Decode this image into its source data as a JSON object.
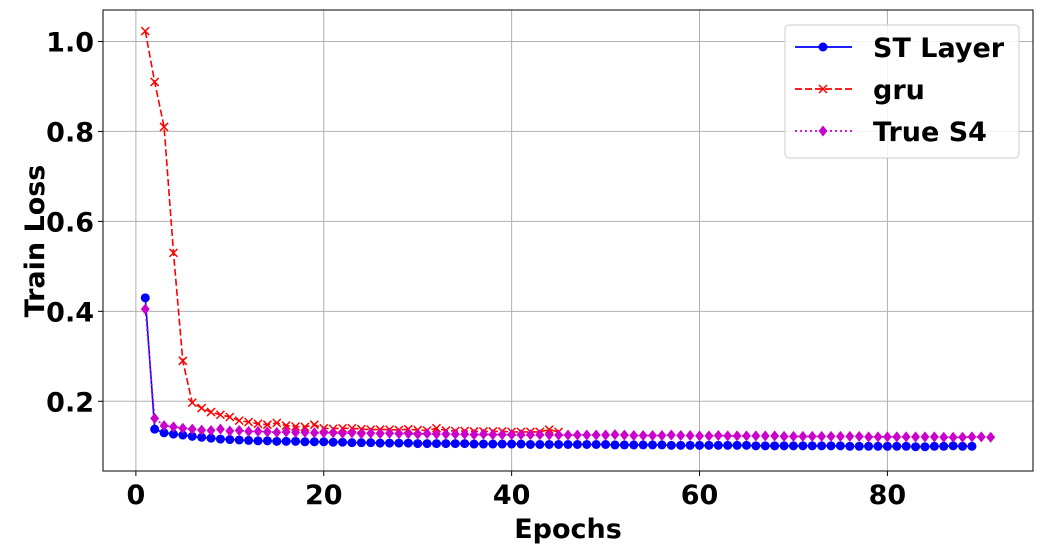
{
  "chart_data": {
    "type": "line",
    "xlabel": "Epochs",
    "ylabel": "Train Loss",
    "xlim": [
      -3.5,
      95.5
    ],
    "ylim": [
      0.045,
      1.07
    ],
    "grid": true,
    "legend_position": "top-right",
    "x_ticks": [
      0,
      20,
      40,
      60,
      80
    ],
    "y_ticks": [
      0.2,
      0.4,
      0.6,
      0.8,
      1.0
    ],
    "x_tick_labels": [
      "0",
      "20",
      "40",
      "60",
      "80"
    ],
    "y_tick_labels": [
      "0.2",
      "0.4",
      "0.6",
      "0.8",
      "1.0"
    ],
    "series": [
      {
        "name": "ST Layer",
        "color": "#0000ff",
        "line_style": "solid",
        "marker": "circle",
        "x": [
          1,
          2,
          3,
          4,
          5,
          6,
          7,
          8,
          9,
          10,
          11,
          12,
          13,
          14,
          15,
          16,
          17,
          18,
          19,
          20,
          21,
          22,
          23,
          24,
          25,
          26,
          27,
          28,
          29,
          30,
          31,
          32,
          33,
          34,
          35,
          36,
          37,
          38,
          39,
          40,
          41,
          42,
          43,
          44,
          45,
          46,
          47,
          48,
          49,
          50,
          51,
          52,
          53,
          54,
          55,
          56,
          57,
          58,
          59,
          60,
          61,
          62,
          63,
          64,
          65,
          66,
          67,
          68,
          69,
          70,
          71,
          72,
          73,
          74,
          75,
          76,
          77,
          78,
          79,
          80,
          81,
          82,
          83,
          84,
          85,
          86,
          87,
          88,
          89
        ],
        "y": [
          0.43,
          0.138,
          0.13,
          0.127,
          0.125,
          0.122,
          0.12,
          0.118,
          0.116,
          0.115,
          0.114,
          0.113,
          0.112,
          0.112,
          0.111,
          0.111,
          0.111,
          0.11,
          0.11,
          0.11,
          0.109,
          0.109,
          0.108,
          0.108,
          0.108,
          0.107,
          0.107,
          0.107,
          0.107,
          0.106,
          0.106,
          0.106,
          0.106,
          0.106,
          0.106,
          0.105,
          0.105,
          0.105,
          0.105,
          0.105,
          0.105,
          0.104,
          0.104,
          0.104,
          0.104,
          0.104,
          0.104,
          0.104,
          0.104,
          0.104,
          0.103,
          0.103,
          0.103,
          0.103,
          0.103,
          0.103,
          0.102,
          0.102,
          0.102,
          0.102,
          0.102,
          0.102,
          0.102,
          0.102,
          0.102,
          0.101,
          0.101,
          0.101,
          0.101,
          0.101,
          0.101,
          0.101,
          0.101,
          0.101,
          0.101,
          0.1,
          0.1,
          0.1,
          0.1,
          0.1,
          0.1,
          0.1,
          0.099,
          0.099,
          0.1,
          0.1,
          0.101,
          0.1,
          0.1
        ]
      },
      {
        "name": "gru",
        "color": "#ff0000",
        "line_style": "dashed",
        "marker": "x",
        "x": [
          1,
          2,
          3,
          4,
          5,
          6,
          7,
          8,
          9,
          10,
          11,
          12,
          13,
          14,
          15,
          16,
          17,
          18,
          19,
          20,
          21,
          22,
          23,
          24,
          25,
          26,
          27,
          28,
          29,
          30,
          31,
          32,
          33,
          34,
          35,
          36,
          37,
          38,
          39,
          40,
          41,
          42,
          43,
          44,
          45
        ],
        "y": [
          1.023,
          0.91,
          0.81,
          0.53,
          0.29,
          0.197,
          0.185,
          0.176,
          0.17,
          0.165,
          0.157,
          0.154,
          0.15,
          0.148,
          0.152,
          0.146,
          0.144,
          0.143,
          0.148,
          0.14,
          0.139,
          0.14,
          0.14,
          0.138,
          0.137,
          0.137,
          0.137,
          0.136,
          0.138,
          0.136,
          0.135,
          0.14,
          0.135,
          0.134,
          0.134,
          0.133,
          0.133,
          0.133,
          0.133,
          0.132,
          0.132,
          0.132,
          0.132,
          0.137,
          0.132
        ]
      },
      {
        "name": "True S4",
        "color": "#cc00cc",
        "line_style": "dotted",
        "marker": "diamond",
        "x": [
          1,
          2,
          3,
          4,
          5,
          6,
          7,
          8,
          9,
          10,
          11,
          12,
          13,
          14,
          15,
          16,
          17,
          18,
          19,
          20,
          21,
          22,
          23,
          24,
          25,
          26,
          27,
          28,
          29,
          30,
          31,
          32,
          33,
          34,
          35,
          36,
          37,
          38,
          39,
          40,
          41,
          42,
          43,
          44,
          45,
          46,
          47,
          48,
          49,
          50,
          51,
          52,
          53,
          54,
          55,
          56,
          57,
          58,
          59,
          60,
          61,
          62,
          63,
          64,
          65,
          66,
          67,
          68,
          69,
          70,
          71,
          72,
          73,
          74,
          75,
          76,
          77,
          78,
          79,
          80,
          81,
          82,
          83,
          84,
          85,
          86,
          87,
          88,
          89,
          90,
          91
        ],
        "y": [
          0.405,
          0.162,
          0.146,
          0.143,
          0.14,
          0.138,
          0.136,
          0.135,
          0.138,
          0.134,
          0.135,
          0.133,
          0.133,
          0.132,
          0.131,
          0.132,
          0.131,
          0.131,
          0.13,
          0.13,
          0.13,
          0.129,
          0.13,
          0.128,
          0.129,
          0.128,
          0.129,
          0.128,
          0.128,
          0.127,
          0.128,
          0.127,
          0.127,
          0.127,
          0.127,
          0.126,
          0.127,
          0.126,
          0.126,
          0.126,
          0.126,
          0.126,
          0.126,
          0.125,
          0.125,
          0.125,
          0.125,
          0.125,
          0.125,
          0.125,
          0.126,
          0.125,
          0.124,
          0.124,
          0.124,
          0.124,
          0.125,
          0.124,
          0.124,
          0.123,
          0.123,
          0.124,
          0.123,
          0.123,
          0.123,
          0.123,
          0.123,
          0.123,
          0.122,
          0.122,
          0.122,
          0.122,
          0.122,
          0.122,
          0.122,
          0.122,
          0.122,
          0.121,
          0.121,
          0.121,
          0.121,
          0.121,
          0.121,
          0.121,
          0.121,
          0.12,
          0.12,
          0.12,
          0.121,
          0.121,
          0.12
        ]
      }
    ]
  }
}
